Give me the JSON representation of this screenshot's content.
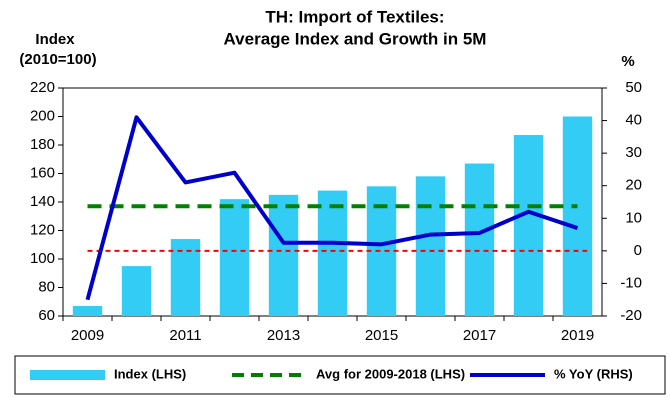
{
  "chart_data": {
    "type": "combo",
    "title": [
      "TH: Import of Textiles:",
      "Average Index and Growth in 5M"
    ],
    "ylabel": [
      "Index",
      "(2010=100)"
    ],
    "y2label": "%",
    "categories": [
      "2009",
      null,
      "2011",
      null,
      "2013",
      null,
      "2015",
      null,
      "2017",
      null,
      "2019"
    ],
    "series": [
      {
        "name": "Index (LHS)",
        "type": "bar",
        "color": "#33ccf5",
        "axis": "y",
        "values": [
          67,
          95,
          114,
          142,
          145,
          148,
          151,
          158,
          167,
          187,
          200
        ]
      },
      {
        "name": "Avg for 2009-2018 (LHS)",
        "type": "dashed-line",
        "color": "#008000",
        "axis": "y",
        "values": [
          137,
          137,
          137,
          137,
          137,
          137,
          137,
          137,
          137,
          137,
          137
        ]
      },
      {
        "name": "% YoY (RHS)",
        "type": "line",
        "color": "#0000cc",
        "axis": "y2",
        "values": [
          -15,
          41,
          21,
          24,
          2.5,
          2.5,
          2,
          5,
          5.5,
          12,
          7
        ]
      }
    ],
    "ylim": [
      60,
      220
    ],
    "yticks": [
      60,
      80,
      100,
      120,
      140,
      160,
      180,
      200,
      220
    ],
    "y2lim": [
      -20,
      50
    ],
    "y2ticks": [
      -20,
      -10,
      0,
      10,
      20,
      30,
      40,
      50
    ],
    "y2_reference_line": {
      "value": 0,
      "color": "#ff0000"
    },
    "legend": "bottom"
  }
}
